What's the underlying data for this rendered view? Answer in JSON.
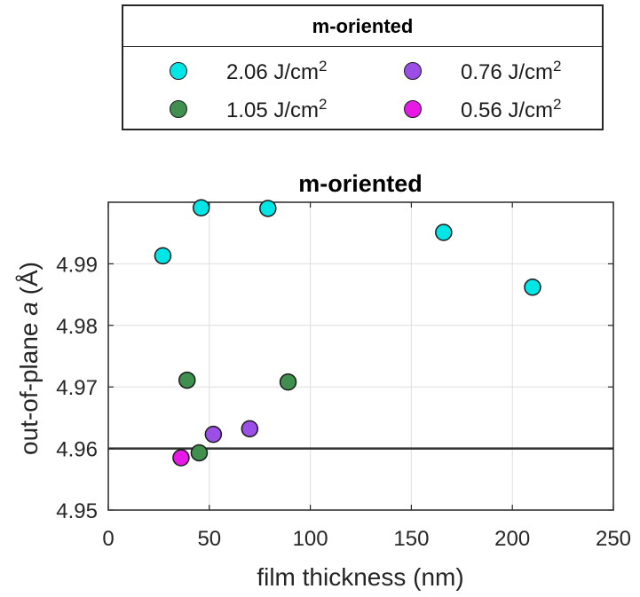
{
  "legend": {
    "title": "m-oriented",
    "items": [
      {
        "label": "2.06 J/cm",
        "sup": "2",
        "color": "#00e5e5"
      },
      {
        "label": "0.76 J/cm",
        "sup": "2",
        "color": "#9b4fe6"
      },
      {
        "label": "1.05 J/cm",
        "sup": "2",
        "color": "#3f8f4f"
      },
      {
        "label": "0.56 J/cm",
        "sup": "2",
        "color": "#e619e6"
      }
    ]
  },
  "chart_data": {
    "type": "scatter",
    "title": "m-oriented",
    "xlabel": "film thickness (nm)",
    "ylabel_prefix": "out-of-plane ",
    "ylabel_italic": "a",
    "ylabel_suffix": " (Å)",
    "xlim": [
      0,
      250
    ],
    "ylim": [
      4.95,
      5.0
    ],
    "xticks": [
      "0",
      "50",
      "100",
      "150",
      "200",
      "250"
    ],
    "yticks": [
      "4.95",
      "4.96",
      "4.97",
      "4.98",
      "4.99"
    ],
    "grid": true,
    "reference_line": 4.96,
    "series": [
      {
        "color": "#00e5e5",
        "points": [
          {
            "x": 27,
            "y": 4.9913
          },
          {
            "x": 46,
            "y": 4.9991
          },
          {
            "x": 79,
            "y": 4.999
          },
          {
            "x": 166,
            "y": 4.9951
          },
          {
            "x": 210,
            "y": 4.9862
          }
        ]
      },
      {
        "color": "#3f8f4f",
        "points": [
          {
            "x": 39,
            "y": 4.9711
          },
          {
            "x": 45,
            "y": 4.9593
          },
          {
            "x": 89,
            "y": 4.9708
          }
        ]
      },
      {
        "color": "#9b4fe6",
        "points": [
          {
            "x": 52,
            "y": 4.9623
          },
          {
            "x": 70,
            "y": 4.9632
          }
        ]
      },
      {
        "color": "#e619e6",
        "points": [
          {
            "x": 36,
            "y": 4.9585
          }
        ]
      }
    ]
  }
}
